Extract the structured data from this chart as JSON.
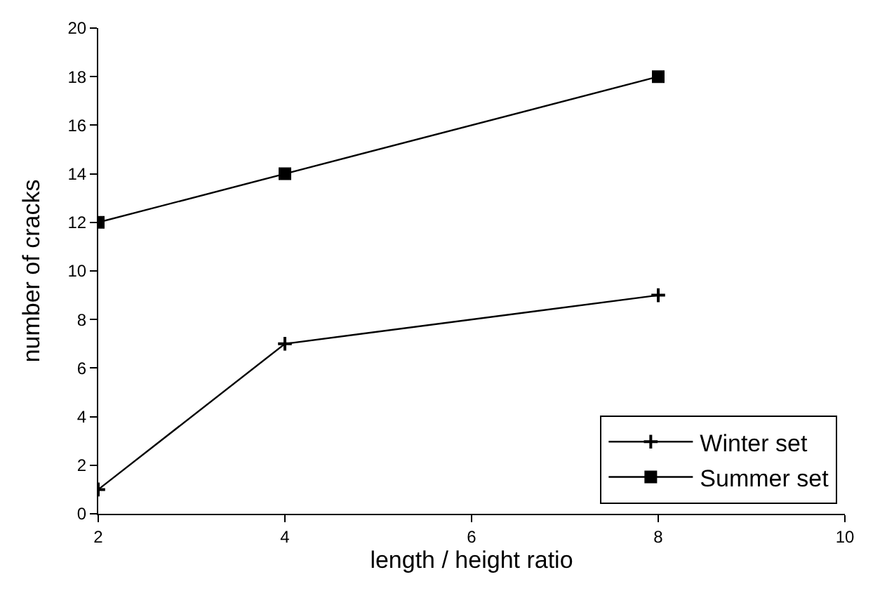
{
  "chart_data": {
    "type": "line",
    "xlabel": "length / height ratio",
    "ylabel": "number of cracks",
    "x": [
      2,
      4,
      8
    ],
    "series": [
      {
        "name": "Winter set",
        "color": "#000000",
        "marker": "cross",
        "values": [
          1,
          7,
          9
        ]
      },
      {
        "name": "Summer set",
        "color": "#000000",
        "marker": "square",
        "values": [
          12,
          14,
          18
        ]
      }
    ],
    "xlim": [
      2,
      10
    ],
    "xticks": [
      2,
      4,
      6,
      8,
      10
    ],
    "ylim": [
      0,
      20
    ],
    "yticks": [
      0,
      2,
      4,
      6,
      8,
      10,
      12,
      14,
      16,
      18,
      20
    ],
    "grid": false,
    "legend": "bottom right",
    "line_style": "solid"
  }
}
